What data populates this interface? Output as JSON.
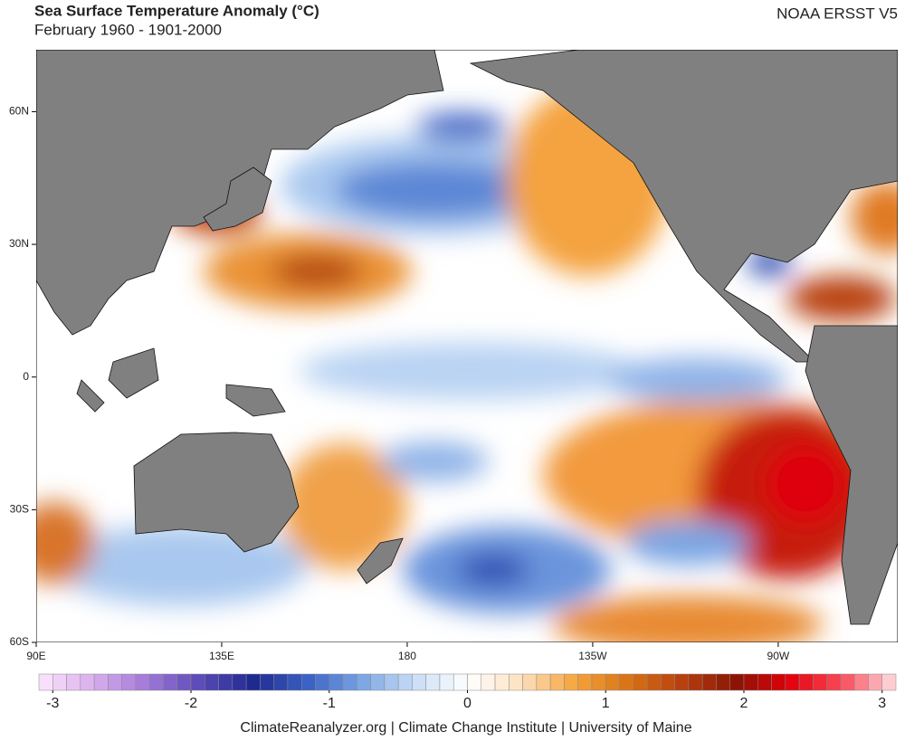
{
  "header": {
    "title": "Sea Surface Temperature Anomaly (°C)",
    "subtitle": "February 1960 - 1901-2000",
    "dataset": "NOAA ERSST V5"
  },
  "map": {
    "xlim": [
      90,
      299
    ],
    "ylim": [
      -60,
      74
    ],
    "xticks": [
      {
        "value": 90,
        "label": "90E"
      },
      {
        "value": 135,
        "label": "135E"
      },
      180,
      {
        "value": 225,
        "label": "135W"
      },
      {
        "value": 270,
        "label": "90W"
      }
    ],
    "yticks": [
      {
        "value": 60,
        "label": "60N"
      },
      {
        "value": 30,
        "label": "30N"
      },
      0,
      {
        "value": -30,
        "label": "30S"
      },
      {
        "value": -60,
        "label": "60S"
      }
    ]
  },
  "colorbar": {
    "lim": [
      -3.1,
      3.1
    ],
    "ticks": [
      -3,
      -2,
      -1,
      0,
      1,
      2,
      3
    ],
    "colors": [
      "#fde6fd",
      "#d9b0ee",
      "#a27ad8",
      "#5b4ab8",
      "#1f2a8f",
      "#3a60c4",
      "#79a4e3",
      "#c8ddf6",
      "#ffffff",
      "#fde1c0",
      "#f5a53c",
      "#d97316",
      "#b8400f",
      "#8a1505",
      "#e0000a",
      "#fa4c5a",
      "#fde0e4"
    ]
  },
  "footer": "ClimateReanalyzer.org | Climate Change Institute | University of Maine"
}
